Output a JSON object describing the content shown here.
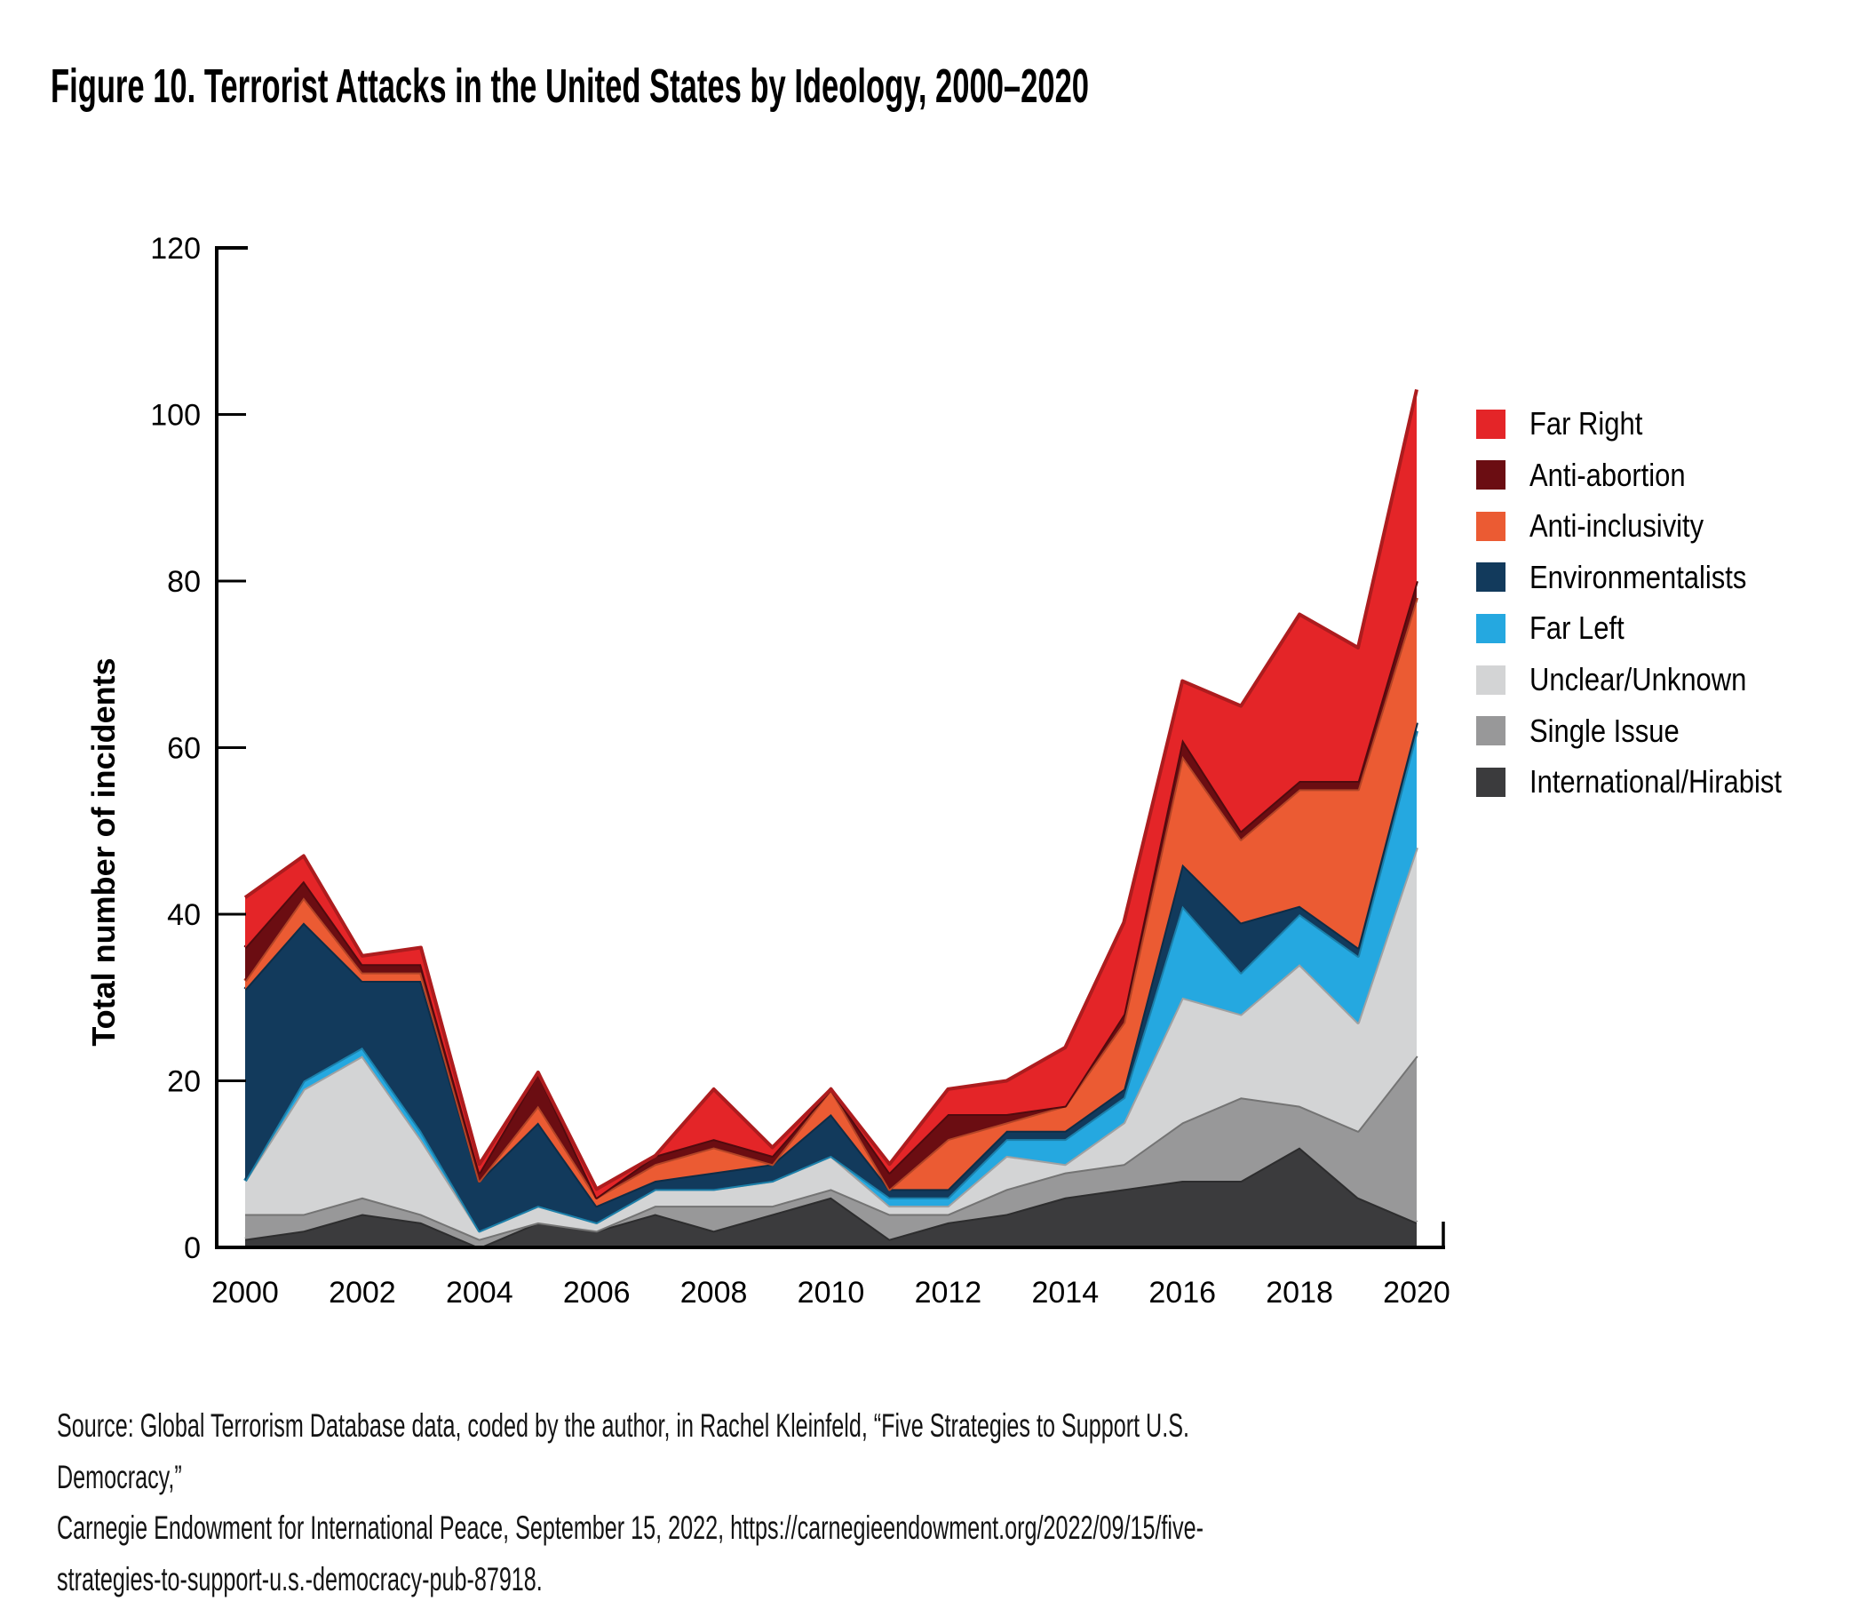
{
  "figure": {
    "title": "Figure 10. Terrorist Attacks in the United States by Ideology, 2000–2020",
    "source": "Source: Global Terrorism Database data, coded by the author, in Rachel Kleinfeld, “Five Strategies to Support U.S. Democracy,”\nCarnegie Endowment for International Peace, September 15, 2022, https://carnegieendowment.org/2022/09/15/five-\nstrategies-to-support-u.s.-democracy-pub-87918."
  },
  "y_axis": {
    "label": "Total number of incidents",
    "ticks": [
      0,
      20,
      40,
      60,
      80,
      100,
      120
    ],
    "range": [
      0,
      120
    ]
  },
  "x_axis": {
    "ticks": [
      2000,
      2002,
      2004,
      2006,
      2008,
      2010,
      2012,
      2014,
      2016,
      2018,
      2020
    ]
  },
  "chart_data": {
    "type": "area",
    "stacked": true,
    "title": "Figure 10. Terrorist Attacks in the United States by Ideology, 2000–2020",
    "xlabel": "",
    "ylabel": "Total number of incidents",
    "ylim": [
      0,
      120
    ],
    "grid": false,
    "legend_position": "right",
    "stack_note": "series listed top layer first (legend order); last series is the bottom layer",
    "x": [
      2000,
      2001,
      2002,
      2003,
      2004,
      2005,
      2006,
      2007,
      2008,
      2009,
      2010,
      2011,
      2012,
      2013,
      2014,
      2015,
      2016,
      2017,
      2018,
      2019,
      2020
    ],
    "series": [
      {
        "name": "Far Right",
        "color": "#E42528",
        "values": [
          6,
          3,
          1,
          2,
          1,
          0,
          1,
          0,
          6,
          1,
          0,
          1,
          3,
          4,
          7,
          11,
          7,
          15,
          20,
          16,
          23
        ]
      },
      {
        "name": "Anti-abortion",
        "color": "#6B0D12",
        "values": [
          4,
          2,
          1,
          1,
          1,
          4,
          0,
          1,
          1,
          1,
          0,
          2,
          3,
          1,
          0,
          1,
          2,
          1,
          1,
          1,
          2
        ]
      },
      {
        "name": "Anti-inclusivity",
        "color": "#EB5B33",
        "values": [
          1,
          3,
          1,
          1,
          0,
          2,
          1,
          2,
          3,
          0,
          3,
          0,
          6,
          1,
          3,
          8,
          13,
          10,
          14,
          19,
          15
        ]
      },
      {
        "name": "Environmentalists",
        "color": "#123A5C",
        "values": [
          23,
          19,
          8,
          18,
          6,
          10,
          2,
          1,
          2,
          2,
          5,
          1,
          1,
          1,
          1,
          1,
          5,
          6,
          1,
          1,
          1
        ]
      },
      {
        "name": "Far Left",
        "color": "#25A8E0",
        "values": [
          0,
          1,
          1,
          1,
          0,
          0,
          0,
          0,
          0,
          0,
          0,
          1,
          1,
          2,
          3,
          3,
          11,
          5,
          6,
          8,
          14
        ]
      },
      {
        "name": "Unclear/Unknown",
        "color": "#D3D4D5",
        "values": [
          4,
          15,
          17,
          9,
          1,
          2,
          1,
          2,
          2,
          3,
          4,
          1,
          1,
          4,
          1,
          5,
          15,
          10,
          17,
          13,
          25
        ]
      },
      {
        "name": "Single Issue",
        "color": "#989899",
        "values": [
          3,
          2,
          2,
          1,
          1,
          0,
          0,
          1,
          3,
          1,
          1,
          3,
          1,
          3,
          3,
          3,
          7,
          10,
          5,
          8,
          20
        ]
      },
      {
        "name": "International/Hirabist",
        "color": "#3B3B3D",
        "values": [
          1,
          2,
          4,
          3,
          0,
          3,
          2,
          4,
          2,
          4,
          6,
          1,
          3,
          4,
          6,
          7,
          8,
          8,
          12,
          6,
          3
        ]
      }
    ],
    "axis_color": "#000000"
  }
}
